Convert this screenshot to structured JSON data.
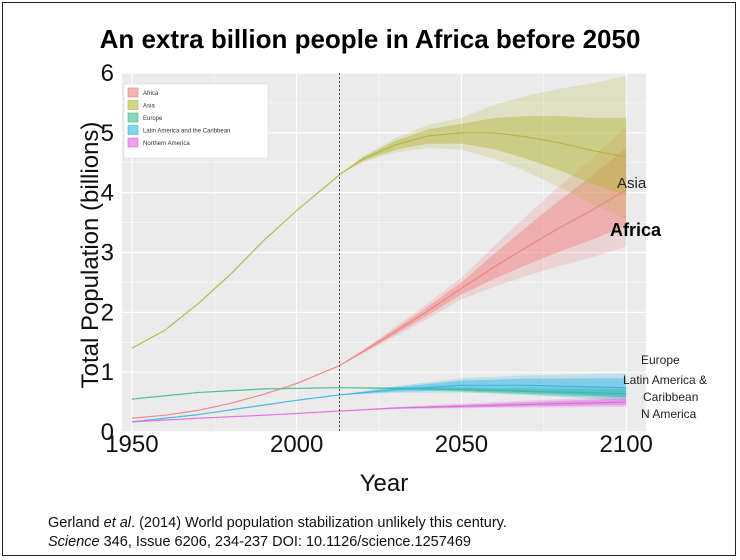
{
  "citation": {
    "line1_author": "Gerland",
    "line1_etal": "et al",
    "line1_rest": ". (2014) World population stabilization unlikely this century.",
    "line2_journal": "Science",
    "line2_rest": " 346, Issue 6206, 234-237 DOI: 10.1126/science.1257469"
  },
  "colors": {
    "panel_bg": "#ebebeb",
    "grid": "#ffffff",
    "africa": "#f08080",
    "asia": "#b5b53c",
    "europe": "#3dbb8a",
    "latam": "#33b5e5",
    "namerica": "#e066e0"
  },
  "chart_data": {
    "type": "line",
    "title": "An extra billion people in Africa before 2050",
    "xlabel": "Year",
    "ylabel": "Total Population (billions)",
    "xlim": [
      1947,
      2106
    ],
    "ylim": [
      0,
      6
    ],
    "x_ticks": [
      1950,
      2000,
      2050,
      2100
    ],
    "y_ticks": [
      0,
      1,
      2,
      3,
      4,
      5,
      6
    ],
    "projection_start_year": 2013,
    "legend": {
      "position": "top-left",
      "entries": [
        "Africa",
        "Asia",
        "Europe",
        "Latin America and the Caribbean",
        "Northern America"
      ]
    },
    "series": [
      {
        "name": "Africa",
        "color": "#f08080",
        "x": [
          1950,
          1960,
          1970,
          1980,
          1990,
          2000,
          2010,
          2013,
          2020,
          2030,
          2040,
          2050,
          2060,
          2070,
          2080,
          2090,
          2100
        ],
        "y": [
          0.23,
          0.28,
          0.36,
          0.48,
          0.63,
          0.81,
          1.04,
          1.11,
          1.34,
          1.68,
          2.03,
          2.4,
          2.76,
          3.1,
          3.42,
          3.72,
          4.05
        ],
        "band80": {
          "x": [
            2013,
            2050,
            2100
          ],
          "lower": [
            1.11,
            2.3,
            3.45
          ],
          "upper": [
            1.11,
            2.5,
            4.75
          ]
        },
        "band95": {
          "x": [
            2013,
            2050,
            2100
          ],
          "lower": [
            1.11,
            2.22,
            3.1
          ],
          "upper": [
            1.11,
            2.58,
            5.1
          ]
        }
      },
      {
        "name": "Asia",
        "color": "#b5b53c",
        "x": [
          1950,
          1960,
          1970,
          1980,
          1990,
          2000,
          2010,
          2013,
          2020,
          2030,
          2040,
          2050,
          2060,
          2070,
          2080,
          2090,
          2100
        ],
        "y": [
          1.4,
          1.7,
          2.14,
          2.64,
          3.2,
          3.7,
          4.16,
          4.3,
          4.56,
          4.8,
          4.95,
          5.0,
          5.0,
          4.93,
          4.83,
          4.7,
          4.6
        ],
        "band80": {
          "x": [
            2013,
            2050,
            2100
          ],
          "lower": [
            4.3,
            4.82,
            3.95
          ],
          "upper": [
            4.3,
            5.15,
            5.25
          ]
        },
        "band95": {
          "x": [
            2013,
            2050,
            2100
          ],
          "lower": [
            4.3,
            4.72,
            3.55
          ],
          "upper": [
            4.3,
            5.25,
            5.95
          ]
        }
      },
      {
        "name": "Europe",
        "color": "#3dbb8a",
        "x": [
          1950,
          1970,
          1990,
          2000,
          2013,
          2030,
          2050,
          2070,
          2100
        ],
        "y": [
          0.55,
          0.66,
          0.72,
          0.73,
          0.74,
          0.73,
          0.71,
          0.68,
          0.64
        ],
        "band80": {
          "x": [
            2013,
            2100
          ],
          "lower": [
            0.74,
            0.58
          ],
          "upper": [
            0.74,
            0.71
          ]
        },
        "band95": {
          "x": [
            2013,
            2100
          ],
          "lower": [
            0.74,
            0.55
          ],
          "upper": [
            0.74,
            0.75
          ]
        }
      },
      {
        "name": "Latin America and the Caribbean",
        "color": "#33b5e5",
        "x": [
          1950,
          1970,
          1990,
          2000,
          2013,
          2030,
          2050,
          2070,
          2100
        ],
        "y": [
          0.17,
          0.29,
          0.45,
          0.53,
          0.62,
          0.71,
          0.78,
          0.78,
          0.74
        ],
        "band80": {
          "x": [
            2013,
            2050,
            2100
          ],
          "lower": [
            0.62,
            0.7,
            0.58
          ],
          "upper": [
            0.62,
            0.86,
            0.9
          ]
        },
        "band95": {
          "x": [
            2013,
            2050,
            2100
          ],
          "lower": [
            0.62,
            0.66,
            0.52
          ],
          "upper": [
            0.62,
            0.9,
            0.98
          ]
        }
      },
      {
        "name": "Northern America",
        "color": "#e066e0",
        "x": [
          1950,
          1970,
          1990,
          2000,
          2013,
          2030,
          2050,
          2070,
          2100
        ],
        "y": [
          0.17,
          0.23,
          0.28,
          0.31,
          0.35,
          0.4,
          0.43,
          0.46,
          0.5
        ],
        "band80": {
          "x": [
            2013,
            2100
          ],
          "lower": [
            0.35,
            0.45
          ],
          "upper": [
            0.35,
            0.56
          ]
        },
        "band95": {
          "x": [
            2013,
            2100
          ],
          "lower": [
            0.35,
            0.42
          ],
          "upper": [
            0.35,
            0.6
          ]
        }
      }
    ],
    "annotations": {
      "asia": "Asia",
      "africa": "Africa",
      "europe": "Europe",
      "latam_line1": "Latin America &",
      "latam_line2": "Caribbean",
      "namerica": "N America"
    }
  }
}
